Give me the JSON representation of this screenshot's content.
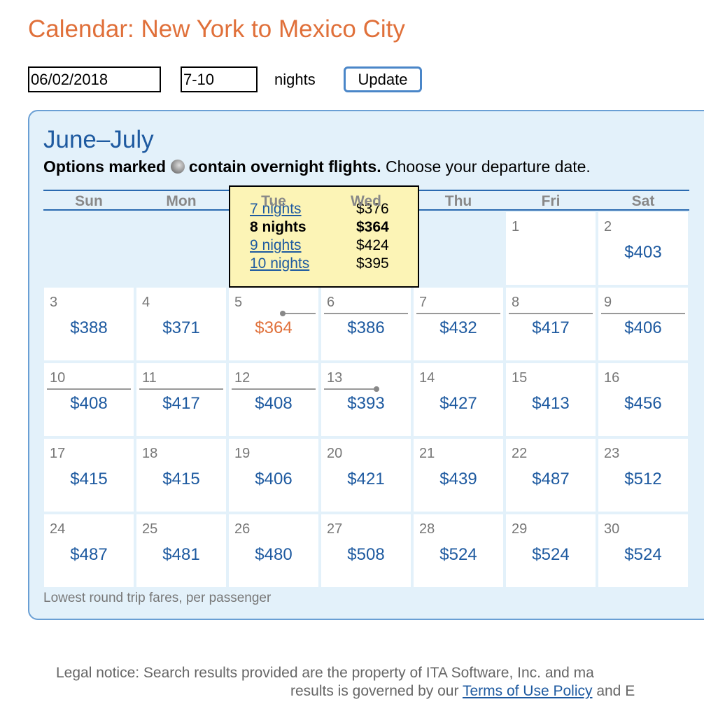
{
  "header": {
    "title": "Calendar: New York to Mexico City"
  },
  "form": {
    "date": "06/02/2018",
    "nights": "7-10",
    "nights_label": "nights",
    "button": "Update"
  },
  "calendar": {
    "heading": "June–July",
    "note": {
      "bold_start": "Options marked",
      "bold_end": "contain overnight flights.",
      "rest": "Choose your departure date."
    },
    "weekdays": [
      "Sun",
      "Mon",
      "Tue",
      "Wed",
      "Thu",
      "Fri",
      "Sat"
    ],
    "weeks": [
      [
        null,
        null,
        null,
        null,
        null,
        {
          "day": "1"
        },
        {
          "day": "2",
          "price": "$403"
        }
      ],
      [
        {
          "day": "3",
          "price": "$388"
        },
        {
          "day": "4",
          "price": "$371"
        },
        {
          "day": "5",
          "price": "$364",
          "selected": true
        },
        {
          "day": "6",
          "price": "$386"
        },
        {
          "day": "7",
          "price": "$432"
        },
        {
          "day": "8",
          "price": "$417"
        },
        {
          "day": "9",
          "price": "$406"
        }
      ],
      [
        {
          "day": "10",
          "price": "$408"
        },
        {
          "day": "11",
          "price": "$417"
        },
        {
          "day": "12",
          "price": "$408"
        },
        {
          "day": "13",
          "price": "$393"
        },
        {
          "day": "14",
          "price": "$427"
        },
        {
          "day": "15",
          "price": "$413"
        },
        {
          "day": "16",
          "price": "$456"
        }
      ],
      [
        {
          "day": "17",
          "price": "$415"
        },
        {
          "day": "18",
          "price": "$415"
        },
        {
          "day": "19",
          "price": "$406"
        },
        {
          "day": "20",
          "price": "$421"
        },
        {
          "day": "21",
          "price": "$439"
        },
        {
          "day": "22",
          "price": "$487"
        },
        {
          "day": "23",
          "price": "$512"
        }
      ],
      [
        {
          "day": "24",
          "price": "$487"
        },
        {
          "day": "25",
          "price": "$481"
        },
        {
          "day": "26",
          "price": "$480"
        },
        {
          "day": "27",
          "price": "$508"
        },
        {
          "day": "28",
          "price": "$524"
        },
        {
          "day": "29",
          "price": "$524"
        },
        {
          "day": "30",
          "price": "$524"
        }
      ]
    ],
    "popup": [
      {
        "nights": "7 nights",
        "price": "$376"
      },
      {
        "nights": "8 nights",
        "price": "$364",
        "selected": true
      },
      {
        "nights": "9 nights",
        "price": "$424"
      },
      {
        "nights": "10 nights",
        "price": "$395"
      }
    ],
    "footnote": "Lowest round trip fares, per passenger"
  },
  "legal": {
    "line1": "Legal notice: Search results provided are the property of ITA Software, Inc. and ma",
    "line2": "results is governed by our",
    "link": "Terms of Use Policy",
    "line2_end": "and E"
  }
}
